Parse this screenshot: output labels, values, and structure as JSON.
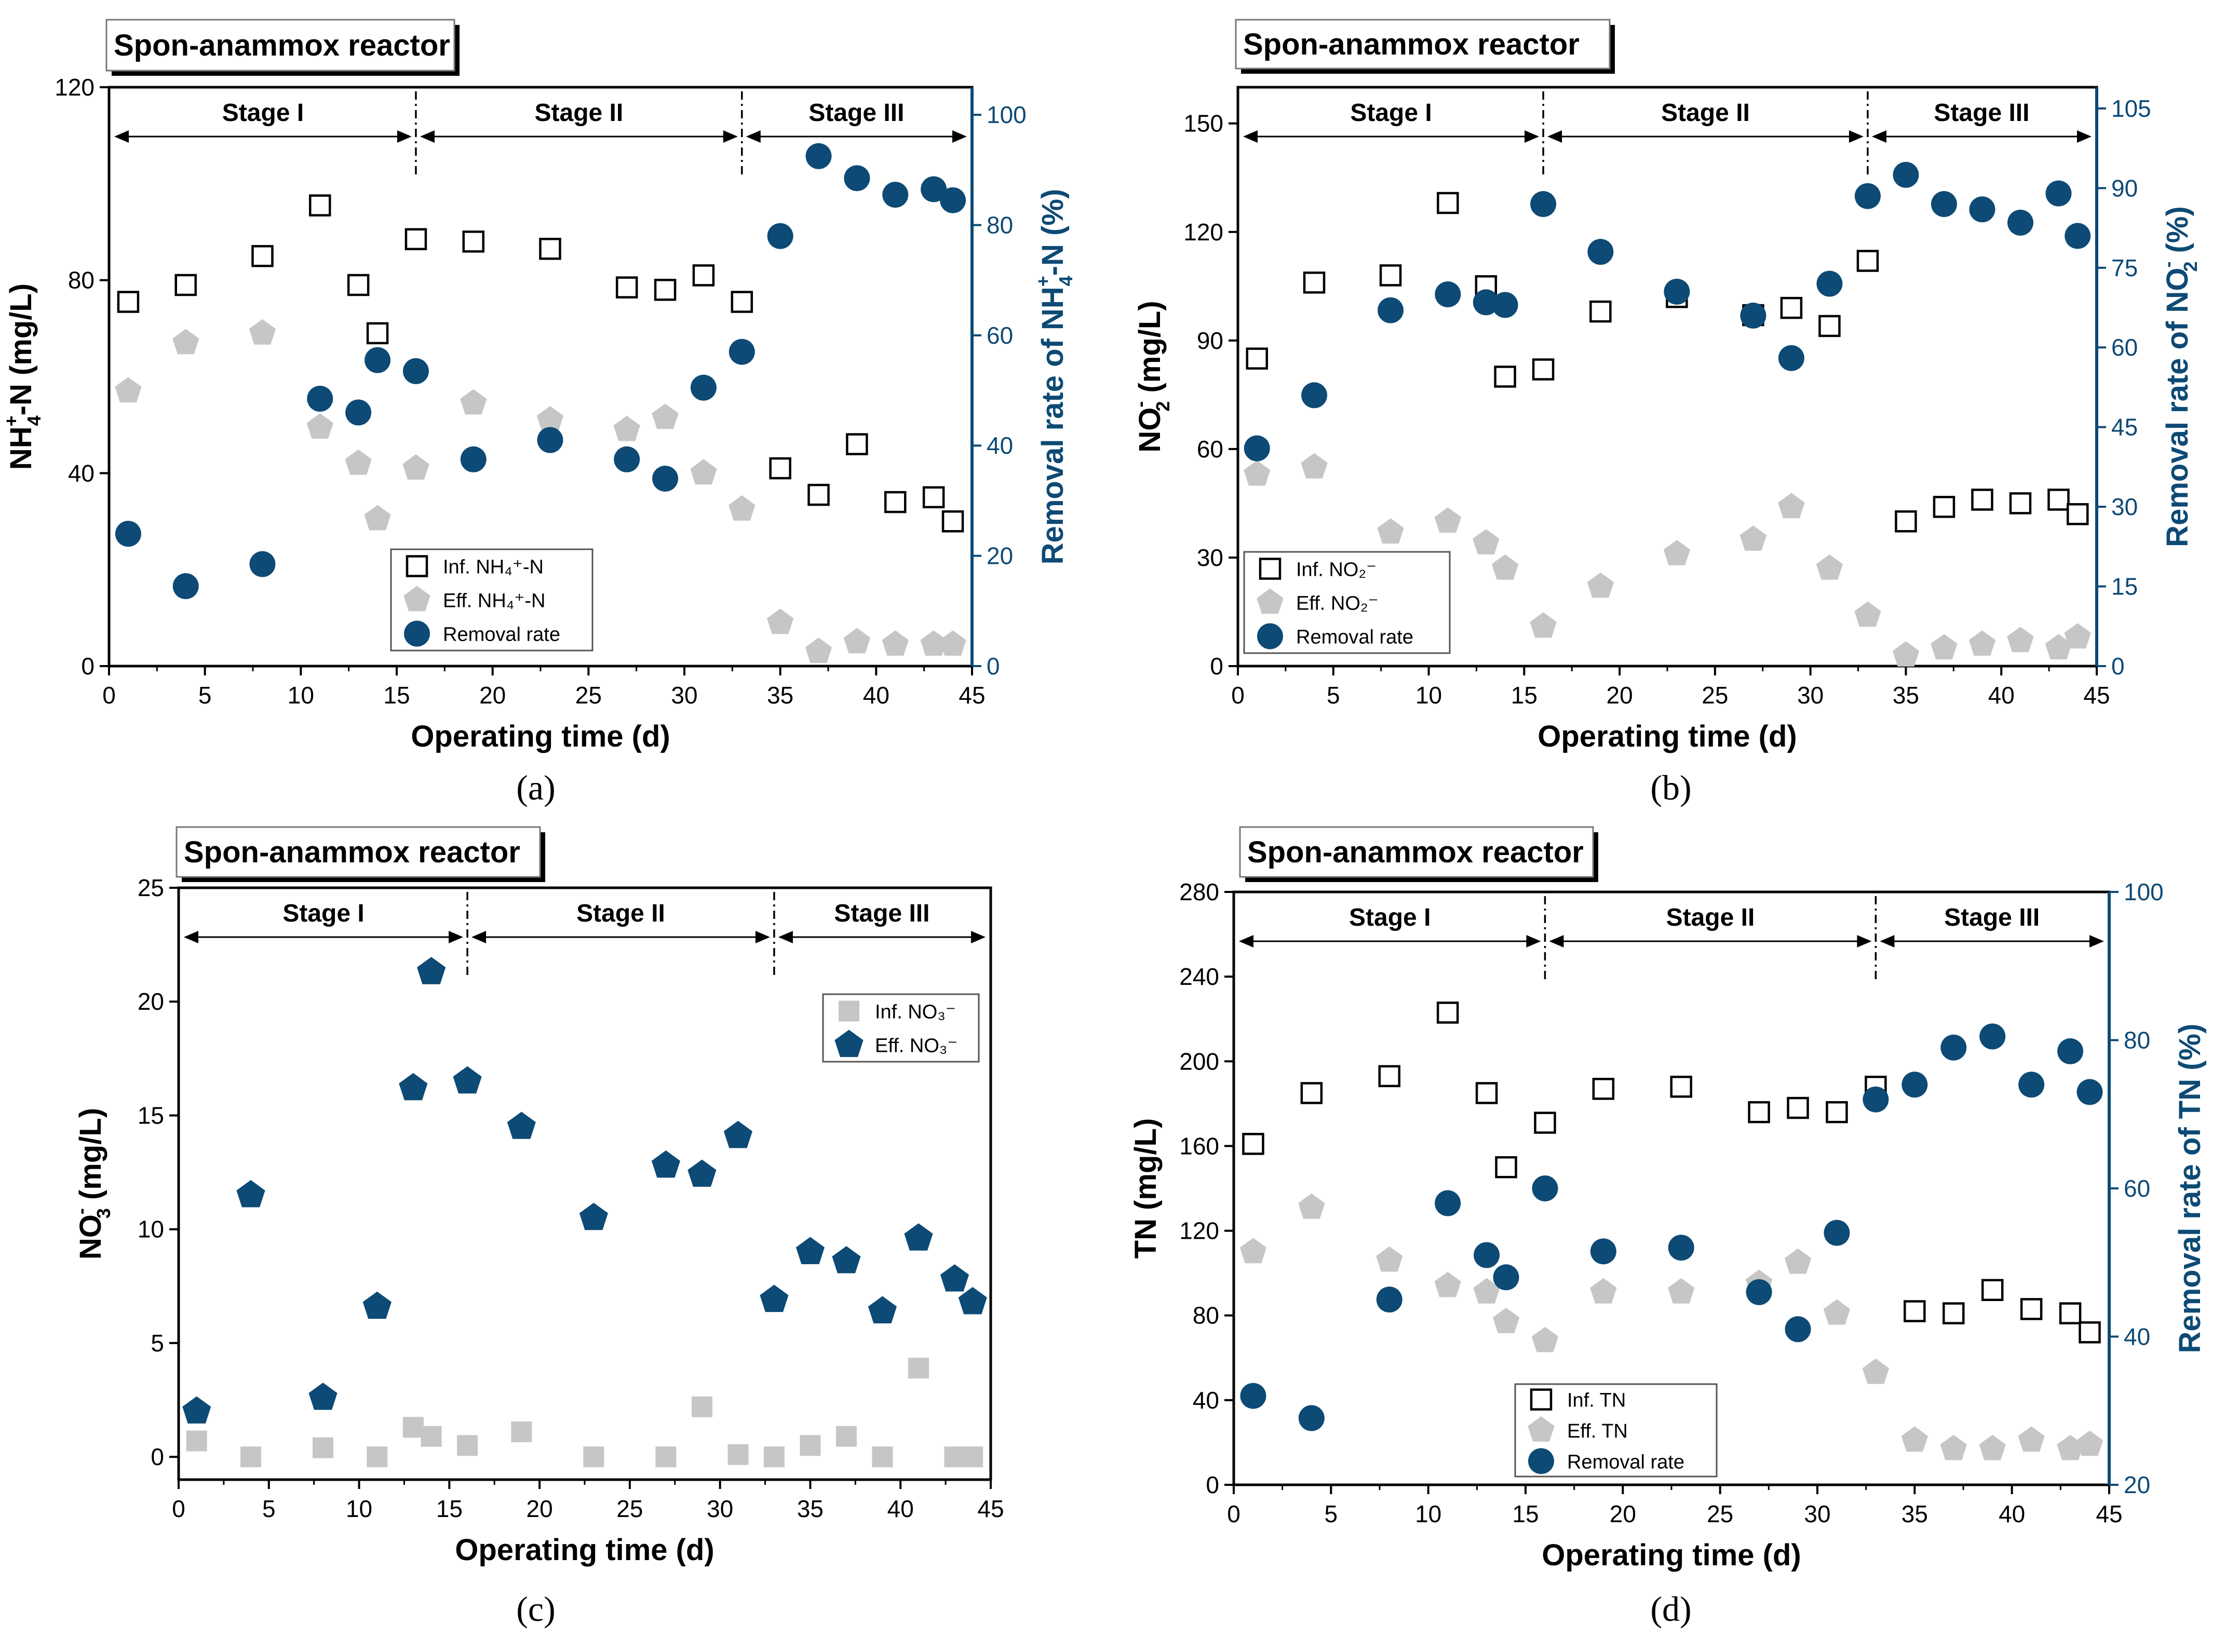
{
  "colors": {
    "blue": "#0d4a75",
    "gray": "#c6c6c6",
    "black": "#000000"
  },
  "chart_data": [
    {
      "id": "a",
      "type": "scatter",
      "panel_label": "(a)",
      "title": "Spon-anammox reactor",
      "xlabel": "Operating time (d)",
      "ylabel_parts": [
        "NH",
        "4",
        "+",
        "-N  (mg/L)"
      ],
      "ylabel2_parts": [
        "Removal rate of NH",
        "4",
        "+",
        "-N  (%)"
      ],
      "xlim": [
        0,
        45
      ],
      "ylim": [
        0,
        120
      ],
      "y2lim": [
        0,
        105
      ],
      "xticks": [
        "0",
        "5",
        "10",
        "15",
        "20",
        "25",
        "30",
        "35",
        "40",
        "45"
      ],
      "yticks": [
        "0",
        "40",
        "80",
        "120"
      ],
      "y2ticks": [
        "0",
        "20",
        "40",
        "60",
        "80",
        "100"
      ],
      "stages": {
        "labels": [
          "Stage I",
          "Stage II",
          "Stage III"
        ],
        "boundaries": [
          16,
          33
        ]
      },
      "legend": {
        "position": "bottom-middle",
        "entries": [
          {
            "label": "Inf. NH₄⁺-N",
            "marker": "square"
          },
          {
            "label": "Eff. NH₄⁺-N",
            "marker": "pentagon"
          },
          {
            "label": "Removal rate",
            "marker": "circle"
          }
        ]
      },
      "series": [
        {
          "name": "Inf. NH₄⁺-N",
          "axis": "left",
          "marker": "square",
          "x": [
            1,
            4,
            8,
            11,
            13,
            14,
            16,
            19,
            23,
            27,
            29,
            31,
            33,
            35,
            37,
            39,
            41,
            43,
            44
          ],
          "y": [
            75.5,
            79,
            85,
            95.5,
            79,
            69,
            88.5,
            88,
            86.5,
            78.5,
            78,
            81,
            75.5,
            41,
            35.5,
            46,
            34,
            35,
            30
          ]
        },
        {
          "name": "Eff. NH₄⁺-N",
          "axis": "left",
          "marker": "pentagon",
          "x": [
            1,
            4,
            8,
            11,
            13,
            14,
            16,
            19,
            23,
            27,
            29,
            31,
            33,
            35,
            37,
            39,
            41,
            43,
            44
          ],
          "y": [
            57,
            67,
            69,
            49.5,
            42,
            30.5,
            41,
            54.5,
            51,
            49,
            51.5,
            40,
            32.5,
            9,
            3,
            5,
            4.5,
            4.5,
            4.5
          ]
        },
        {
          "name": "Removal rate",
          "axis": "right",
          "marker": "circle",
          "x": [
            1,
            4,
            8,
            11,
            13,
            14,
            16,
            19,
            23,
            27,
            29,
            31,
            33,
            35,
            37,
            39,
            41,
            43,
            44
          ],
          "y": [
            24,
            14.5,
            18.5,
            48.5,
            46,
            55.5,
            53.5,
            37.5,
            41,
            37.5,
            34,
            50.5,
            57,
            78,
            92.5,
            88.5,
            85.5,
            86.5,
            84.5
          ]
        }
      ]
    },
    {
      "id": "b",
      "type": "scatter",
      "panel_label": "(b)",
      "title": "Spon-anammox reactor",
      "xlabel": "Operating time (d)",
      "ylabel_parts": [
        "NO",
        "2",
        "-",
        "  (mg/L)"
      ],
      "ylabel2_parts": [
        "Removal rate of NO",
        "2",
        "-",
        " (%)"
      ],
      "xlim": [
        0,
        45
      ],
      "ylim": [
        0,
        160
      ],
      "y2lim": [
        0,
        109
      ],
      "xticks": [
        "0",
        "5",
        "10",
        "15",
        "20",
        "25",
        "30",
        "35",
        "40",
        "45"
      ],
      "yticks": [
        "0",
        "30",
        "60",
        "90",
        "120",
        "150"
      ],
      "y2ticks": [
        "0",
        "15",
        "30",
        "45",
        "60",
        "75",
        "90",
        "105"
      ],
      "stages": {
        "labels": [
          "Stage I",
          "Stage II",
          "Stage III"
        ],
        "boundaries": [
          16,
          33
        ]
      },
      "legend": {
        "position": "bottom-left",
        "entries": [
          {
            "label": "Inf. NO₂⁻",
            "marker": "square"
          },
          {
            "label": "Eff. NO₂⁻",
            "marker": "pentagon"
          },
          {
            "label": "Removal rate",
            "marker": "circle"
          }
        ]
      },
      "series": [
        {
          "name": "Inf. NO₂⁻",
          "axis": "left",
          "marker": "square",
          "x": [
            1,
            4,
            8,
            11,
            13,
            14,
            16,
            19,
            23,
            27,
            29,
            31,
            33,
            35,
            37,
            39,
            41,
            43,
            44
          ],
          "y": [
            85,
            106,
            108,
            128,
            105,
            80,
            82,
            98,
            102,
            97,
            99,
            94,
            112,
            40,
            44,
            46,
            45,
            46,
            42
          ]
        },
        {
          "name": "Eff. NO₂⁻",
          "axis": "left",
          "marker": "pentagon",
          "x": [
            1,
            4,
            8,
            11,
            13,
            14,
            16,
            19,
            23,
            27,
            29,
            31,
            33,
            35,
            37,
            39,
            41,
            43,
            44
          ],
          "y": [
            53,
            55,
            37,
            40,
            34,
            27,
            11,
            22,
            31,
            35,
            44,
            27,
            14,
            3,
            5,
            6,
            7,
            5,
            8
          ]
        },
        {
          "name": "Removal rate",
          "axis": "right",
          "marker": "circle",
          "x": [
            1,
            4,
            8,
            11,
            13,
            14,
            16,
            19,
            23,
            27,
            29,
            31,
            33,
            35,
            37,
            39,
            41,
            43,
            44
          ],
          "y": [
            41,
            51,
            67,
            70,
            68.5,
            68,
            87,
            78,
            70.5,
            66,
            58,
            72,
            88.5,
            92.5,
            87,
            86,
            83.5,
            89,
            81
          ]
        }
      ]
    },
    {
      "id": "c",
      "type": "scatter",
      "panel_label": "(c)",
      "title": "Spon-anammox reactor",
      "xlabel": "Operating time (d)",
      "ylabel_parts": [
        "NO",
        "3",
        "-",
        "  (mg/L)"
      ],
      "xlim": [
        0,
        45
      ],
      "ylim": [
        -1,
        25
      ],
      "xticks": [
        "0",
        "5",
        "10",
        "15",
        "20",
        "25",
        "30",
        "35",
        "40",
        "45"
      ],
      "yticks": [
        "0",
        "5",
        "10",
        "15",
        "20",
        "25"
      ],
      "stages": {
        "labels": [
          "Stage I",
          "Stage II",
          "Stage III"
        ],
        "boundaries": [
          16,
          33
        ]
      },
      "legend": {
        "position": "top-right",
        "entries": [
          {
            "label": "Inf. NO₃⁻",
            "marker": "gsquare"
          },
          {
            "label": "Eff. NO₃⁻",
            "marker": "bpentagon"
          }
        ]
      },
      "series": [
        {
          "name": "Inf. NO₃⁻",
          "axis": "left",
          "marker": "gsquare",
          "x": [
            1,
            4,
            8,
            11,
            13,
            14,
            16,
            19,
            23,
            27,
            29,
            31,
            33,
            35,
            37,
            39,
            41,
            43,
            44
          ],
          "y": [
            0.7,
            0,
            0.4,
            0,
            1.3,
            0.9,
            0.5,
            1.1,
            0,
            0,
            2.2,
            0.1,
            0,
            0.5,
            0.9,
            0,
            3.9,
            0,
            0
          ]
        },
        {
          "name": "Eff. NO₃⁻",
          "axis": "left",
          "marker": "bpentagon",
          "x": [
            1,
            4,
            8,
            11,
            13,
            14,
            16,
            19,
            23,
            27,
            29,
            31,
            33,
            35,
            37,
            39,
            41,
            43,
            44
          ],
          "y": [
            2,
            11.5,
            2.6,
            6.6,
            16.2,
            21.3,
            16.5,
            14.5,
            10.5,
            12.8,
            12.4,
            14.1,
            6.9,
            9,
            8.6,
            6.4,
            9.6,
            7.8,
            6.8
          ]
        }
      ]
    },
    {
      "id": "d",
      "type": "scatter",
      "panel_label": "(d)",
      "title": "Spon-anammox reactor",
      "xlabel": "Operating time (d)",
      "ylabel_parts": [
        "TN (mg/L)"
      ],
      "ylabel2_parts": [
        "Removal rate of TN (%)"
      ],
      "xlim": [
        0,
        45
      ],
      "ylim": [
        0,
        280
      ],
      "y2lim": [
        20,
        100
      ],
      "xticks": [
        "0",
        "5",
        "10",
        "15",
        "20",
        "25",
        "30",
        "35",
        "40",
        "45"
      ],
      "yticks": [
        "0",
        "40",
        "80",
        "120",
        "160",
        "200",
        "240",
        "280"
      ],
      "y2ticks": [
        "20",
        "40",
        "60",
        "80",
        "100"
      ],
      "stages": {
        "labels": [
          "Stage I",
          "Stage II",
          "Stage III"
        ],
        "boundaries": [
          16,
          33
        ]
      },
      "legend": {
        "position": "bottom-middle",
        "entries": [
          {
            "label": "Inf. TN",
            "marker": "square"
          },
          {
            "label": "Eff. TN",
            "marker": "pentagon"
          },
          {
            "label": "Removal rate",
            "marker": "circle"
          }
        ]
      },
      "series": [
        {
          "name": "Inf. TN",
          "axis": "left",
          "marker": "square",
          "x": [
            1,
            4,
            8,
            11,
            13,
            14,
            16,
            19,
            23,
            27,
            29,
            31,
            33,
            35,
            37,
            39,
            41,
            43,
            44
          ],
          "y": [
            161,
            185,
            193,
            223,
            185,
            150,
            171,
            187,
            188,
            176,
            178,
            176,
            188,
            82,
            81,
            92,
            83,
            81,
            72
          ]
        },
        {
          "name": "Eff. TN",
          "axis": "left",
          "marker": "pentagon",
          "x": [
            1,
            4,
            8,
            11,
            13,
            14,
            16,
            19,
            23,
            27,
            29,
            31,
            33,
            35,
            37,
            39,
            41,
            43,
            44
          ],
          "y": [
            110,
            131,
            106,
            94,
            91,
            77,
            68,
            91,
            91,
            95,
            105,
            81,
            53,
            21,
            17,
            17,
            21,
            17,
            19
          ]
        },
        {
          "name": "Removal rate",
          "axis": "right",
          "marker": "circle",
          "x": [
            1,
            4,
            8,
            11,
            13,
            14,
            16,
            19,
            23,
            27,
            29,
            31,
            33,
            35,
            37,
            39,
            41,
            43,
            44
          ],
          "y": [
            32,
            29,
            45,
            58,
            51,
            48,
            60,
            51.5,
            52,
            46,
            41,
            54,
            72,
            74,
            79,
            80.5,
            74,
            78.5,
            73
          ]
        }
      ]
    }
  ]
}
